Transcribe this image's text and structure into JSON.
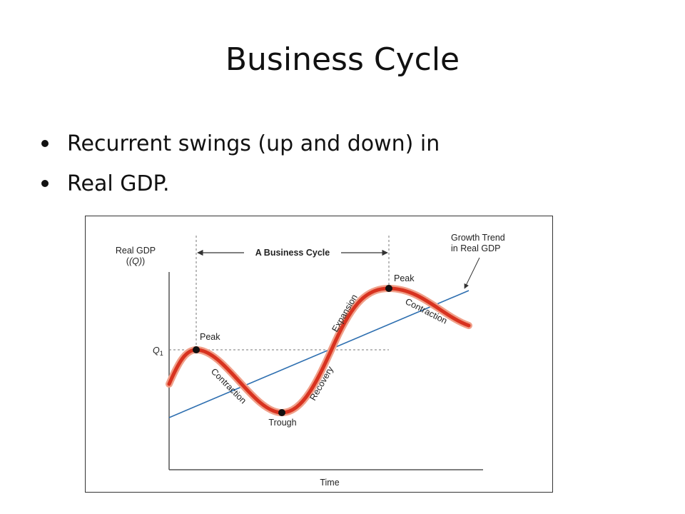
{
  "slide": {
    "title": "Business Cycle",
    "bullets": [
      "Recurrent swings (up and down) in",
      "Real GDP."
    ]
  },
  "figure": {
    "y_axis_label_line1": "Real GDP",
    "y_axis_label_line2": "(Q)",
    "x_axis_label": "Time",
    "q1_label": "Q",
    "q1_subscript": "1",
    "cycle_label": "A Business Cycle",
    "trend_label_line1": "Growth Trend",
    "trend_label_line2": "in Real GDP",
    "points": {
      "first_peak": "Peak",
      "trough": "Trough",
      "second_peak": "Peak"
    },
    "phases": {
      "first_contraction": "Contraction",
      "recovery": "Recovery",
      "expansion": "Expansion",
      "second_contraction": "Contraction"
    },
    "colors": {
      "cycle_fill": "#d8321f",
      "cycle_glow": "#f0a08a",
      "trend_line": "#2e6fb0",
      "axis": "#555555",
      "guide": "#777777"
    }
  }
}
